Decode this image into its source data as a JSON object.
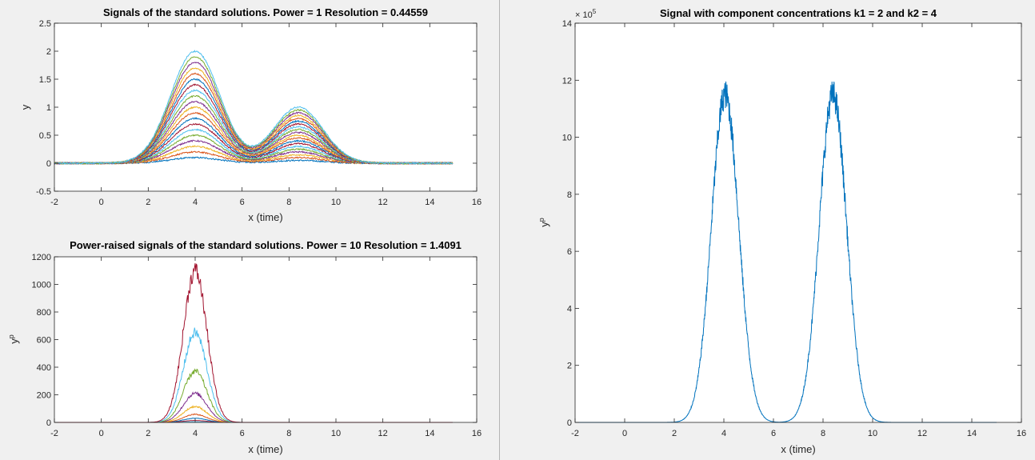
{
  "chart_data": [
    {
      "type": "line",
      "title": "Signals of the standard solutions.  Power = 1    Resolution = 0.44559",
      "xlabel": "x (time)",
      "ylabel": "y",
      "xlim": [
        -2,
        16
      ],
      "ylim": [
        -0.5,
        2.5
      ],
      "xticks": [
        "-2",
        "0",
        "2",
        "4",
        "6",
        "8",
        "10",
        "12",
        "14",
        "16"
      ],
      "yticks": [
        "-0.5",
        "0",
        "0.5",
        "1",
        "1.5",
        "2",
        "2.5"
      ],
      "x_range": [
        -2,
        15
      ],
      "peaks": [
        {
          "center": 4,
          "width": 1.05
        },
        {
          "center": 8.4,
          "width": 1.05
        }
      ],
      "series_count": 20,
      "series": [
        {
          "amp1": 0.1,
          "amp2": 0.05
        },
        {
          "amp1": 0.2,
          "amp2": 0.1
        },
        {
          "amp1": 0.3,
          "amp2": 0.15
        },
        {
          "amp1": 0.4,
          "amp2": 0.2
        },
        {
          "amp1": 0.5,
          "amp2": 0.25
        },
        {
          "amp1": 0.6,
          "amp2": 0.3
        },
        {
          "amp1": 0.7,
          "amp2": 0.35
        },
        {
          "amp1": 0.8,
          "amp2": 0.4
        },
        {
          "amp1": 0.9,
          "amp2": 0.45
        },
        {
          "amp1": 1.0,
          "amp2": 0.5
        },
        {
          "amp1": 1.1,
          "amp2": 0.55
        },
        {
          "amp1": 1.2,
          "amp2": 0.6
        },
        {
          "amp1": 1.3,
          "amp2": 0.65
        },
        {
          "amp1": 1.4,
          "amp2": 0.7
        },
        {
          "amp1": 1.5,
          "amp2": 0.75
        },
        {
          "amp1": 1.6,
          "amp2": 0.8
        },
        {
          "amp1": 1.7,
          "amp2": 0.85
        },
        {
          "amp1": 1.8,
          "amp2": 0.9
        },
        {
          "amp1": 1.9,
          "amp2": 0.95
        },
        {
          "amp1": 2.0,
          "amp2": 1.0
        }
      ]
    },
    {
      "type": "line",
      "title": "Power-raised signals of the standard solutions.  Power = 10    Resolution = 1.4091",
      "xlabel": "x (time)",
      "ylabel": "y",
      "ylabel_superscript": "p",
      "xlim": [
        -2,
        16
      ],
      "ylim": [
        0,
        1200
      ],
      "xticks": [
        "-2",
        "0",
        "2",
        "4",
        "6",
        "8",
        "10",
        "12",
        "14",
        "16"
      ],
      "yticks": [
        "0",
        "200",
        "400",
        "600",
        "800",
        "1000",
        "1200"
      ],
      "x_range": [
        -2,
        15
      ],
      "peak_center": 4,
      "series": [
        {
          "peak": 1100
        },
        {
          "peak": 650
        },
        {
          "peak": 370
        },
        {
          "peak": 210
        },
        {
          "peak": 115
        },
        {
          "peak": 58
        },
        {
          "peak": 30
        },
        {
          "peak": 14
        },
        {
          "peak": 5
        }
      ]
    },
    {
      "type": "line",
      "title": "Signal with component concentrations k1 = 2 and k2 = 4",
      "xlabel": "x (time)",
      "ylabel": "y",
      "ylabel_superscript": "p",
      "exponent_label": "× 10",
      "exponent_power": "5",
      "xlim": [
        -2,
        16
      ],
      "ylim": [
        0,
        14
      ],
      "xticks": [
        "-2",
        "0",
        "2",
        "4",
        "6",
        "8",
        "10",
        "12",
        "14",
        "16"
      ],
      "yticks": [
        "0",
        "2",
        "4",
        "6",
        "8",
        "10",
        "12",
        "14"
      ],
      "x_range": [
        -2,
        15
      ],
      "series": [
        {
          "peak_center": 4.05,
          "peak_value": 11.5
        },
        {
          "peak_center": 8.4,
          "peak_value": 11.5
        }
      ],
      "valley_value": 0.15
    }
  ],
  "colors": [
    "#0072bd",
    "#d95319",
    "#edb120",
    "#7e2f8e",
    "#77ac30",
    "#4dbeee",
    "#a2142f"
  ]
}
